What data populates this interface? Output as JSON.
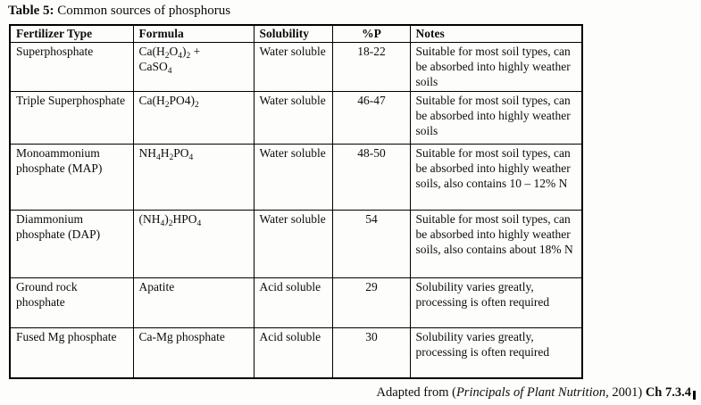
{
  "page": {
    "title": {
      "prefix": "Table 5:",
      "text": " Common sources of phosphorus"
    },
    "footer": {
      "segments": [
        {
          "text": "Adapted from ("
        },
        {
          "text": "Principals of Plant Nutrition,",
          "style": "italic"
        },
        {
          "text": " 2001) "
        },
        {
          "text": "Ch 7.3.4",
          "style": "bold"
        }
      ]
    }
  },
  "table": {
    "columns": [
      {
        "id": "fertilizer_type",
        "label": "Fertilizer Type",
        "align": "left"
      },
      {
        "id": "formula",
        "label": "Formula",
        "align": "left"
      },
      {
        "id": "solubility",
        "label": "Solubility",
        "align": "left"
      },
      {
        "id": "p_percent",
        "label": "%P",
        "align": "center"
      },
      {
        "id": "notes",
        "label": "Notes",
        "align": "left"
      }
    ],
    "rows": [
      {
        "fertilizer_type": "Superphosphate",
        "formula": "Ca(H_2O_4)_2 +\nCaSO_4",
        "solubility": "Water soluble",
        "p_percent": "18-22",
        "notes": "Suitable for most soil types, can be absorbed into highly weather soils"
      },
      {
        "fertilizer_type": "Triple Superphosphate",
        "formula": "Ca(H_2PO4)_2",
        "solubility": "Water soluble",
        "p_percent": "46-47",
        "notes": "Suitable for most soil types, can be absorbed into highly weather soils"
      },
      {
        "fertilizer_type": "Monoammonium phosphate (MAP)",
        "formula": "NH_4H_2PO_4",
        "solubility": "Water soluble",
        "p_percent": "48-50",
        "notes": "Suitable for most soil types, can be absorbed into highly weather soils, also contains 10 – 12% N"
      },
      {
        "fertilizer_type": "Diammonium phosphate (DAP)",
        "formula": "(NH_4)_2HPO_4",
        "solubility": "Water soluble",
        "p_percent": "54",
        "notes": "Suitable for most soil types, can be absorbed into highly weather soils, also contains about 18% N"
      },
      {
        "fertilizer_type": "Ground rock phosphate",
        "formula": "Apatite",
        "solubility": "Acid soluble",
        "p_percent": "29",
        "notes": "Solubility varies greatly, processing is often required"
      },
      {
        "fertilizer_type": "Fused Mg phosphate",
        "formula": "Ca-Mg phosphate",
        "solubility": "Acid soluble",
        "p_percent": "30",
        "notes": "Solubility varies greatly, processing is often required"
      }
    ]
  }
}
